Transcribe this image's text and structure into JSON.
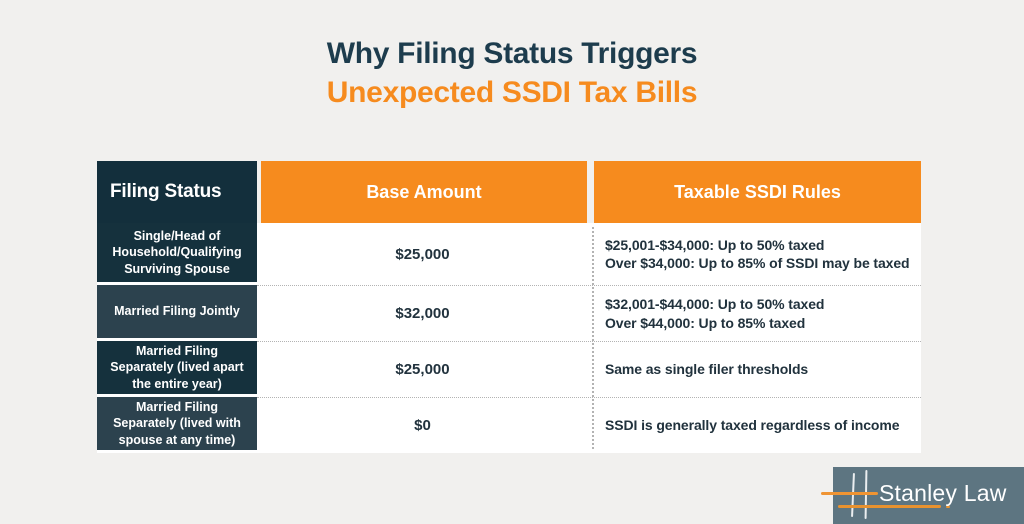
{
  "title": {
    "line1": "Why Filing Status Triggers",
    "line2": "Unexpected SSDI Tax Bills"
  },
  "table": {
    "headers": [
      "Filing Status",
      "Base Amount",
      "Taxable SSDI Rules"
    ],
    "rows": [
      {
        "status": "Single/Head of Household/Qualifying Surviving Spouse",
        "base": "$25,000",
        "rules": "$25,001-$34,000: Up to 50% taxed\nOver $34,000: Up to 85% of SSDI may be taxed"
      },
      {
        "status": "Married Filing Jointly",
        "base": "$32,000",
        "rules": "$32,001-$44,000: Up to 50% taxed\nOver $44,000: Up to 85% taxed"
      },
      {
        "status": "Married Filing Separately (lived apart the entire year)",
        "base": "$25,000",
        "rules": "Same as single filer thresholds"
      },
      {
        "status": "Married Filing Separately (lived with spouse at any time)",
        "base": "$0",
        "rules": "SSDI is generally taxed regardless of income"
      }
    ]
  },
  "logo": {
    "text": "Stanley Law"
  },
  "colors": {
    "page_bg": "#f1f0ee",
    "title_navy": "#1d3c4d",
    "accent_orange": "#f68b1e",
    "header_navy": "#132f3c",
    "row_navy_dark": "#15313d",
    "row_navy_light": "#2c424e",
    "body_text": "#21323d",
    "logo_bg": "#5d7581",
    "divider_dotted": "#b3b3b3"
  },
  "chart_data": {
    "type": "table",
    "title": "Why Filing Status Triggers Unexpected SSDI Tax Bills",
    "columns": [
      "Filing Status",
      "Base Amount",
      "Taxable SSDI Rules"
    ],
    "rows": [
      [
        "Single/Head of Household/Qualifying Surviving Spouse",
        "$25,000",
        "$25,001-$34,000: Up to 50% taxed; Over $34,000: Up to 85% of SSDI may be taxed"
      ],
      [
        "Married Filing Jointly",
        "$32,000",
        "$32,001-$44,000: Up to 50% taxed; Over $44,000: Up to 85% taxed"
      ],
      [
        "Married Filing Separately (lived apart the entire year)",
        "$25,000",
        "Same as single filer thresholds"
      ],
      [
        "Married Filing Separately (lived with spouse at any time)",
        "$0",
        "SSDI is generally taxed regardless of income"
      ]
    ],
    "base_amounts_numeric": [
      25000,
      32000,
      25000,
      0
    ],
    "layout": "header row navy+orange, alternating navy left column, white body with dotted separators"
  }
}
